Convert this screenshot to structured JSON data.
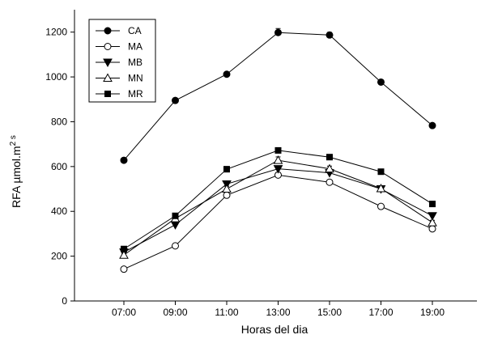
{
  "chart_data": {
    "type": "line",
    "xlabel": "Horas del dia",
    "ylabel": "RFA µmol.m",
    "ylabel_superscript": "2 s",
    "categories": [
      "07:00",
      "09:00",
      "11:00",
      "13:00",
      "15:00",
      "17:00",
      "19:00"
    ],
    "ylim": [
      0,
      1300
    ],
    "yticks": [
      0,
      200,
      400,
      600,
      800,
      1000,
      1200
    ],
    "grid": false,
    "legend_position": "top-left",
    "series": [
      {
        "name": "CA",
        "marker": "filled-circle",
        "values": [
          628,
          895,
          1012,
          1198,
          1187,
          977,
          783
        ],
        "errors": [
          8,
          10,
          10,
          18,
          12,
          8,
          8
        ]
      },
      {
        "name": "MA",
        "marker": "open-circle",
        "values": [
          142,
          246,
          472,
          562,
          530,
          422,
          322
        ],
        "errors": [
          6,
          8,
          12,
          12,
          10,
          8,
          10
        ]
      },
      {
        "name": "MB",
        "marker": "filled-triangle-down",
        "values": [
          218,
          340,
          522,
          590,
          572,
          500,
          380
        ],
        "errors": [
          8,
          10,
          12,
          12,
          12,
          10,
          12
        ]
      },
      {
        "name": "MN",
        "marker": "open-triangle-up",
        "values": [
          205,
          368,
          500,
          628,
          590,
          502,
          350
        ],
        "errors": [
          8,
          10,
          12,
          15,
          12,
          10,
          10
        ]
      },
      {
        "name": "MR",
        "marker": "filled-square",
        "values": [
          232,
          380,
          588,
          672,
          642,
          577,
          433
        ],
        "errors": [
          8,
          10,
          12,
          12,
          12,
          10,
          10
        ]
      }
    ]
  }
}
